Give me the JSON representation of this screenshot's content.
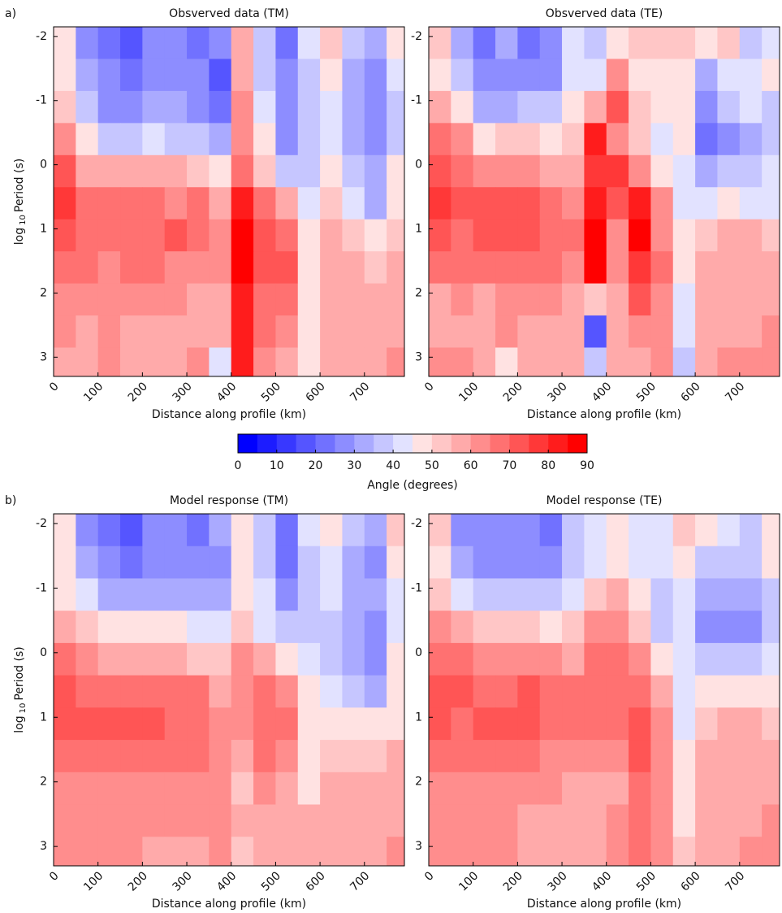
{
  "chart_data": [
    {
      "type": "heatmap",
      "panel_label": "a)",
      "title": "Obsverved data (TM)",
      "x_label": "Distance along profile (km)",
      "y_label": [
        "log",
        "10",
        "Period (s)"
      ],
      "xlim": [
        0,
        790
      ],
      "ylim": [
        -2.15,
        3.3
      ],
      "xticks": [
        0,
        100,
        200,
        300,
        400,
        500,
        600,
        700
      ],
      "yticks": [
        -2,
        -1,
        0,
        1,
        2,
        3
      ],
      "x": [
        25,
        75,
        125,
        175,
        225,
        275,
        325,
        375,
        425,
        475,
        525,
        575,
        625,
        675,
        725,
        775
      ],
      "y": [
        -1.9,
        -1.4,
        -0.9,
        -0.4,
        0.1,
        0.6,
        1.1,
        1.6,
        2.1,
        2.6,
        3.1
      ],
      "z": [
        [
          48,
          25,
          22,
          15,
          25,
          25,
          20,
          28,
          55,
          35,
          22,
          40,
          50,
          35,
          30,
          48
        ],
        [
          45,
          30,
          25,
          20,
          28,
          25,
          25,
          15,
          55,
          35,
          25,
          35,
          45,
          30,
          25,
          40
        ],
        [
          50,
          38,
          28,
          25,
          30,
          30,
          28,
          20,
          60,
          40,
          25,
          35,
          40,
          30,
          28,
          35
        ],
        [
          60,
          45,
          38,
          38,
          40,
          38,
          35,
          30,
          62,
          45,
          28,
          35,
          40,
          30,
          25,
          38
        ],
        [
          72,
          58,
          55,
          55,
          55,
          55,
          50,
          45,
          65,
          50,
          35,
          38,
          45,
          35,
          30,
          45
        ],
        [
          78,
          68,
          65,
          65,
          65,
          62,
          65,
          58,
          80,
          65,
          55,
          40,
          50,
          40,
          30,
          45
        ],
        [
          72,
          68,
          68,
          68,
          68,
          70,
          65,
          60,
          85,
          72,
          68,
          45,
          55,
          50,
          45,
          50
        ],
        [
          68,
          66,
          62,
          65,
          65,
          62,
          62,
          60,
          85,
          72,
          70,
          45,
          58,
          55,
          52,
          55
        ],
        [
          62,
          60,
          60,
          60,
          60,
          60,
          58,
          58,
          82,
          68,
          65,
          45,
          55,
          58,
          55,
          55
        ],
        [
          60,
          58,
          60,
          58,
          58,
          58,
          55,
          58,
          82,
          65,
          62,
          45,
          55,
          58,
          55,
          55
        ],
        [
          58,
          58,
          62,
          55,
          58,
          58,
          62,
          40,
          82,
          62,
          58,
          45,
          55,
          58,
          58,
          60
        ]
      ]
    },
    {
      "type": "heatmap",
      "title": "Obsverved data (TE)",
      "x_label": "Distance along profile (km)",
      "xlim": [
        0,
        790
      ],
      "ylim": [
        -2.15,
        3.3
      ],
      "xticks": [
        0,
        100,
        200,
        300,
        400,
        500,
        600,
        700
      ],
      "yticks": [
        -2,
        -1,
        0,
        1,
        2,
        3
      ],
      "x": [
        25,
        75,
        125,
        175,
        225,
        275,
        325,
        375,
        425,
        475,
        525,
        575,
        625,
        675,
        725,
        775
      ],
      "y": [
        -1.9,
        -1.4,
        -0.9,
        -0.4,
        0.1,
        0.6,
        1.1,
        1.6,
        2.1,
        2.6,
        3.1
      ],
      "z": [
        [
          50,
          30,
          20,
          30,
          20,
          25,
          40,
          35,
          45,
          50,
          50,
          50,
          45,
          50,
          35,
          42
        ],
        [
          48,
          35,
          25,
          25,
          25,
          28,
          40,
          42,
          60,
          45,
          48,
          45,
          30,
          40,
          40,
          45
        ],
        [
          55,
          45,
          30,
          30,
          35,
          35,
          45,
          55,
          72,
          50,
          45,
          45,
          25,
          35,
          40,
          38
        ],
        [
          65,
          60,
          45,
          50,
          50,
          45,
          50,
          80,
          60,
          50,
          40,
          45,
          20,
          25,
          30,
          35
        ],
        [
          70,
          65,
          62,
          62,
          60,
          58,
          55,
          75,
          75,
          62,
          48,
          40,
          30,
          35,
          35,
          40
        ],
        [
          75,
          70,
          70,
          70,
          70,
          68,
          60,
          80,
          70,
          80,
          60,
          42,
          40,
          45,
          42,
          42
        ],
        [
          70,
          68,
          70,
          70,
          72,
          68,
          65,
          85,
          62,
          85,
          62,
          45,
          50,
          55,
          55,
          50
        ],
        [
          65,
          65,
          65,
          65,
          66,
          65,
          62,
          85,
          60,
          78,
          65,
          45,
          55,
          58,
          55,
          55
        ],
        [
          58,
          60,
          58,
          60,
          60,
          60,
          58,
          50,
          58,
          70,
          62,
          40,
          55,
          55,
          55,
          55
        ],
        [
          58,
          58,
          58,
          60,
          58,
          58,
          55,
          15,
          58,
          60,
          60,
          40,
          55,
          58,
          58,
          60
        ],
        [
          60,
          60,
          58,
          48,
          55,
          58,
          55,
          35,
          58,
          58,
          60,
          38,
          55,
          62,
          60,
          62
        ]
      ]
    },
    {
      "type": "heatmap",
      "panel_label": "b)",
      "title": "Model response (TM)",
      "x_label": "Distance along profile (km)",
      "y_label": [
        "log",
        "10",
        "Period (s)"
      ],
      "xlim": [
        0,
        790
      ],
      "ylim": [
        -2.15,
        3.3
      ],
      "xticks": [
        0,
        100,
        200,
        300,
        400,
        500,
        600,
        700
      ],
      "yticks": [
        -2,
        -1,
        0,
        1,
        2,
        3
      ],
      "x": [
        25,
        75,
        125,
        175,
        225,
        275,
        325,
        375,
        425,
        475,
        525,
        575,
        625,
        675,
        725,
        775
      ],
      "y": [
        -1.9,
        -1.4,
        -0.9,
        -0.4,
        0.1,
        0.6,
        1.1,
        1.6,
        2.1,
        2.6,
        3.1
      ],
      "z": [
        [
          48,
          28,
          22,
          15,
          25,
          28,
          22,
          30,
          45,
          35,
          20,
          40,
          45,
          38,
          30,
          50
        ],
        [
          45,
          30,
          25,
          22,
          28,
          25,
          25,
          25,
          45,
          35,
          22,
          38,
          42,
          32,
          28,
          45
        ],
        [
          45,
          40,
          30,
          30,
          32,
          32,
          30,
          30,
          45,
          40,
          28,
          38,
          40,
          32,
          30,
          40
        ],
        [
          55,
          50,
          45,
          45,
          45,
          45,
          42,
          40,
          50,
          42,
          35,
          38,
          38,
          30,
          25,
          42
        ],
        [
          68,
          60,
          58,
          58,
          58,
          58,
          52,
          50,
          60,
          55,
          45,
          42,
          38,
          30,
          28,
          45
        ],
        [
          72,
          68,
          68,
          65,
          68,
          65,
          65,
          55,
          62,
          65,
          62,
          45,
          40,
          35,
          32,
          48
        ],
        [
          72,
          70,
          70,
          70,
          70,
          68,
          68,
          62,
          62,
          68,
          65,
          48,
          45,
          45,
          45,
          48
        ],
        [
          68,
          68,
          68,
          68,
          68,
          68,
          66,
          62,
          55,
          68,
          62,
          45,
          52,
          52,
          50,
          55
        ],
        [
          62,
          62,
          62,
          62,
          62,
          62,
          62,
          60,
          50,
          62,
          58,
          48,
          55,
          58,
          55,
          55
        ],
        [
          60,
          60,
          60,
          60,
          60,
          60,
          60,
          60,
          55,
          58,
          58,
          55,
          58,
          58,
          58,
          58
        ],
        [
          60,
          60,
          60,
          60,
          58,
          58,
          58,
          60,
          52,
          58,
          58,
          55,
          58,
          58,
          58,
          60
        ]
      ]
    },
    {
      "type": "heatmap",
      "title": "Model response (TE)",
      "x_label": "Distance along profile (km)",
      "xlim": [
        0,
        790
      ],
      "ylim": [
        -2.15,
        3.3
      ],
      "xticks": [
        0,
        100,
        200,
        300,
        400,
        500,
        600,
        700
      ],
      "yticks": [
        -2,
        -1,
        0,
        1,
        2,
        3
      ],
      "x": [
        25,
        75,
        125,
        175,
        225,
        275,
        325,
        375,
        425,
        475,
        525,
        575,
        625,
        675,
        725,
        775
      ],
      "y": [
        -1.9,
        -1.4,
        -0.9,
        -0.4,
        0.1,
        0.6,
        1.1,
        1.6,
        2.1,
        2.6,
        3.1
      ],
      "z": [
        [
          50,
          28,
          25,
          28,
          25,
          22,
          35,
          40,
          48,
          40,
          42,
          50,
          48,
          40,
          35,
          45
        ],
        [
          48,
          32,
          28,
          28,
          28,
          28,
          38,
          42,
          48,
          42,
          40,
          45,
          35,
          38,
          35,
          45
        ],
        [
          52,
          42,
          35,
          35,
          35,
          35,
          42,
          50,
          55,
          45,
          38,
          42,
          30,
          30,
          32,
          38
        ],
        [
          62,
          55,
          50,
          50,
          50,
          48,
          50,
          62,
          60,
          50,
          38,
          40,
          25,
          25,
          28,
          35
        ],
        [
          68,
          65,
          62,
          62,
          62,
          60,
          58,
          68,
          65,
          60,
          45,
          40,
          35,
          35,
          35,
          40
        ],
        [
          70,
          70,
          68,
          68,
          70,
          68,
          65,
          68,
          65,
          68,
          58,
          42,
          48,
          48,
          45,
          45
        ],
        [
          70,
          68,
          70,
          70,
          70,
          68,
          65,
          65,
          65,
          72,
          62,
          42,
          52,
          55,
          55,
          52
        ],
        [
          65,
          66,
          66,
          66,
          66,
          64,
          62,
          62,
          62,
          72,
          62,
          45,
          55,
          55,
          55,
          55
        ],
        [
          60,
          60,
          60,
          60,
          60,
          60,
          58,
          58,
          58,
          68,
          60,
          45,
          55,
          55,
          55,
          58
        ],
        [
          60,
          60,
          60,
          60,
          58,
          58,
          55,
          55,
          60,
          65,
          60,
          45,
          55,
          58,
          58,
          60
        ],
        [
          60,
          60,
          60,
          60,
          58,
          55,
          55,
          55,
          60,
          68,
          60,
          50,
          55,
          58,
          62,
          60
        ]
      ]
    },
    {
      "type": "colorbar",
      "label": "Angle (degrees)",
      "clim": [
        0,
        90
      ],
      "ticks": [
        0,
        10,
        20,
        30,
        40,
        50,
        60,
        70,
        80,
        90
      ],
      "colors": [
        "#0000ff",
        "#1c1cff",
        "#3838ff",
        "#5555ff",
        "#7171ff",
        "#8d8dff",
        "#aaaaff",
        "#c6c6ff",
        "#e2e2ff",
        "#ffe2e2",
        "#ffc6c6",
        "#ffaaaa",
        "#ff8d8d",
        "#ff7171",
        "#ff5555",
        "#ff3838",
        "#ff1c1c",
        "#ff0000"
      ]
    }
  ]
}
